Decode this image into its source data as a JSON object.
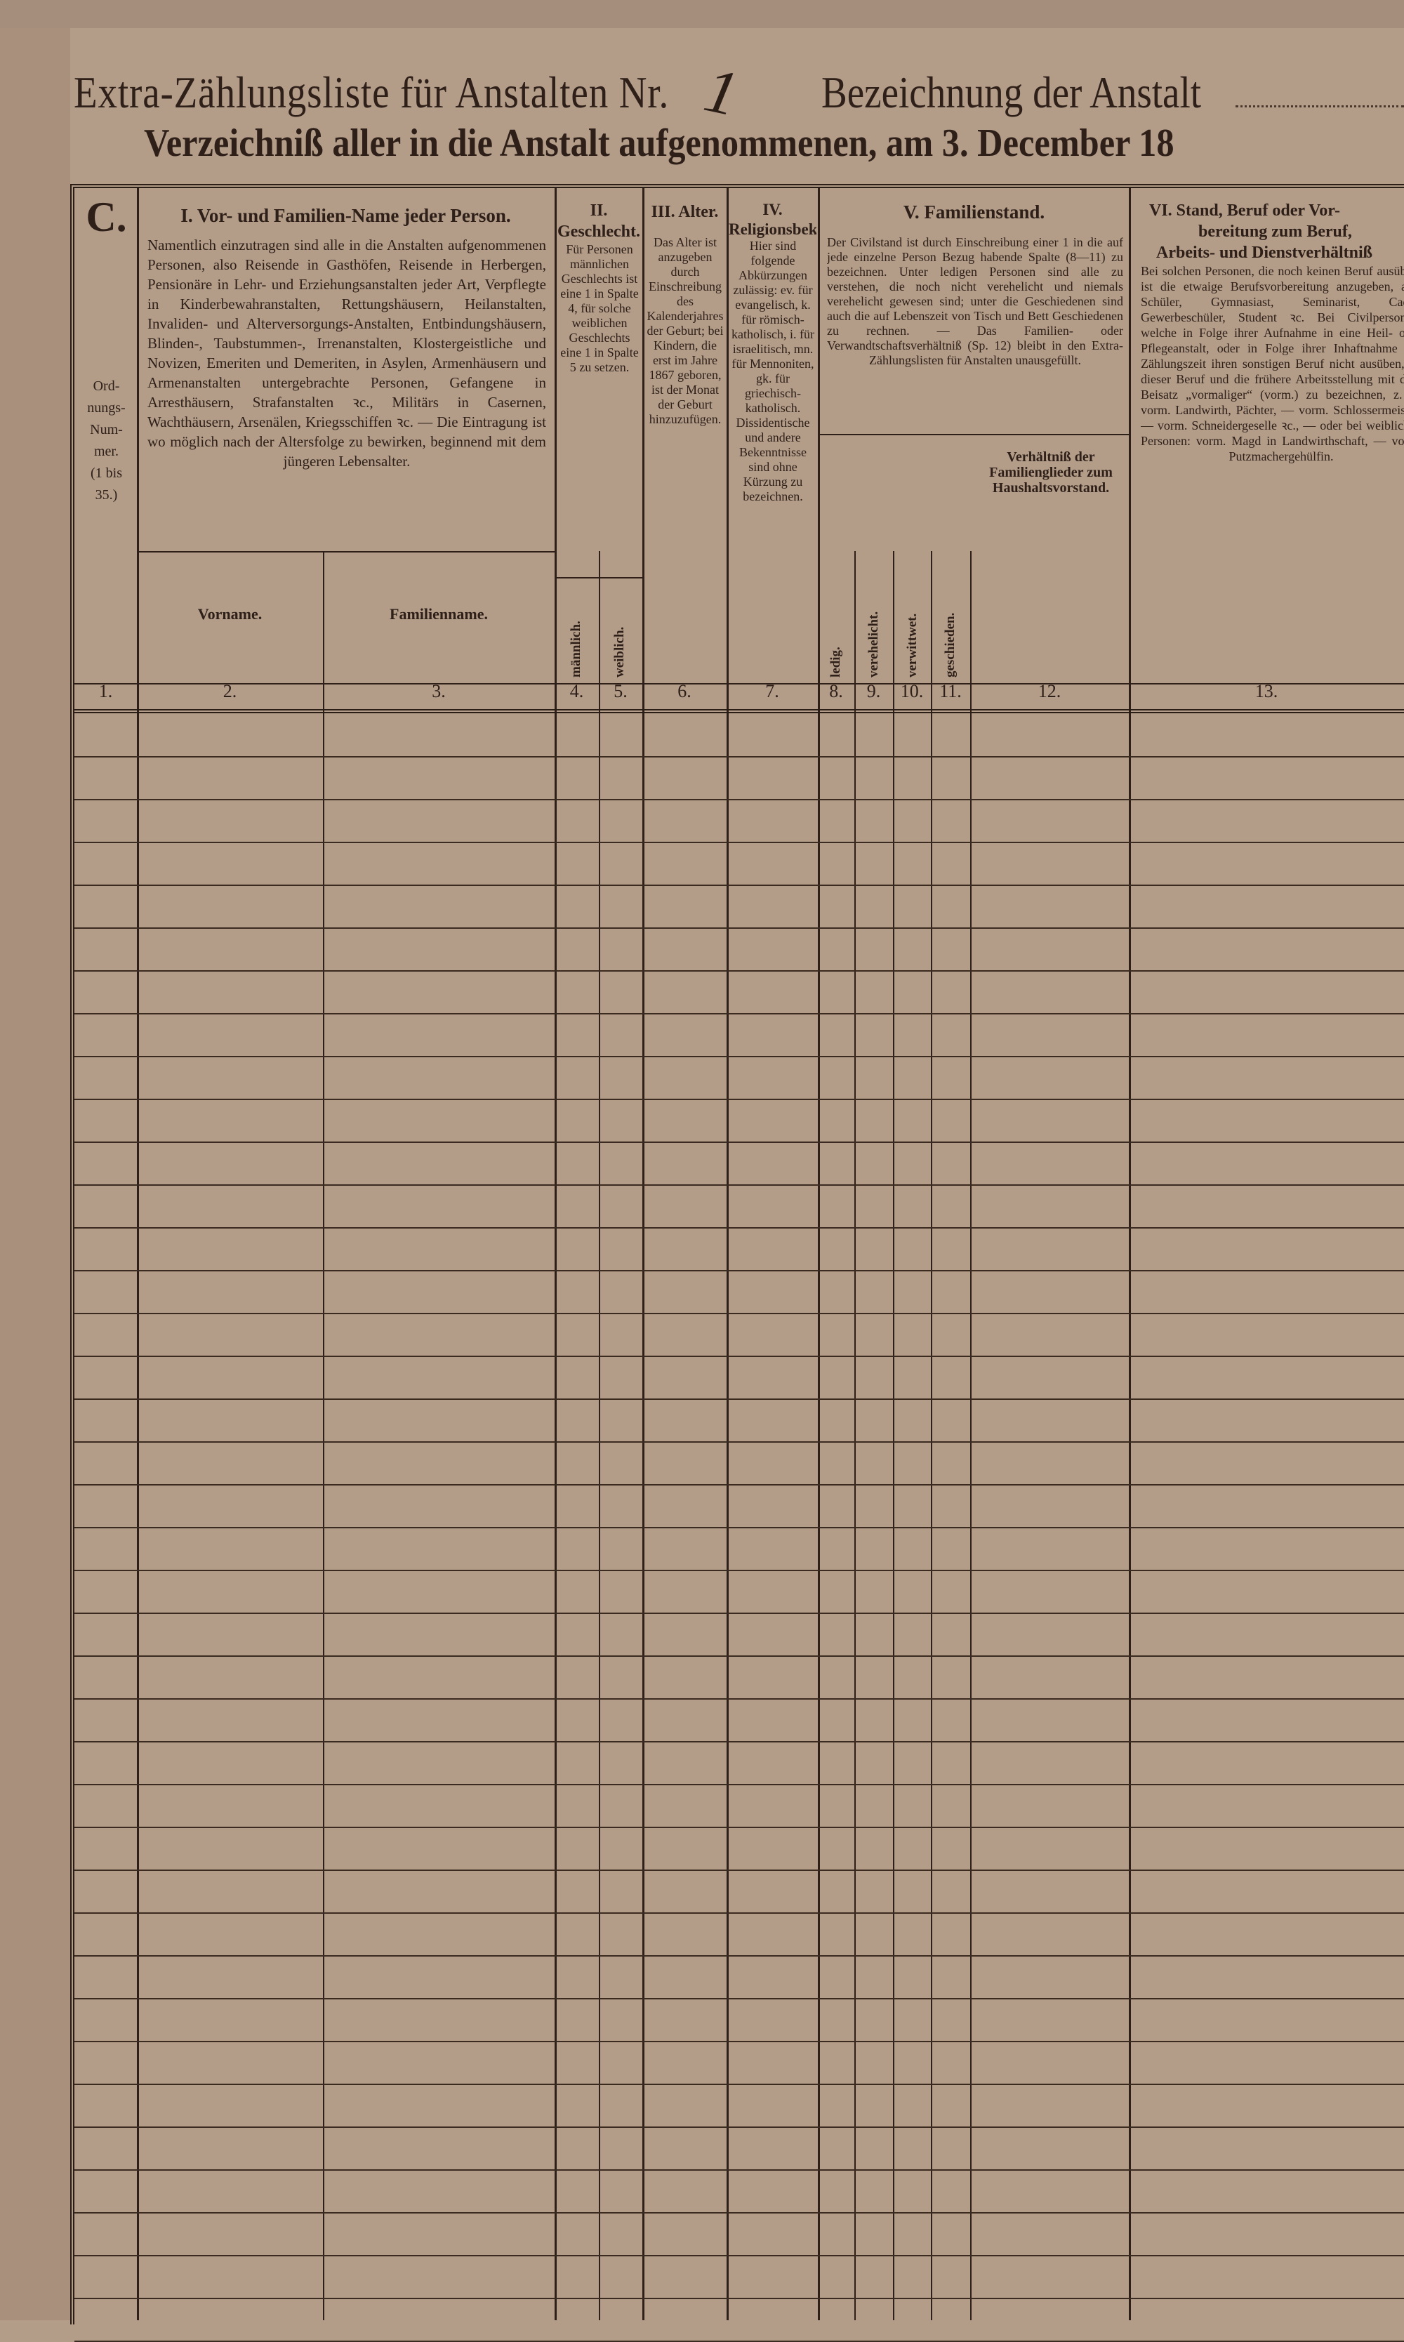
{
  "header": {
    "title_line1": "Extra-Zählungsliste für Anstalten Nr.",
    "institution_number": "1",
    "title_line1_b": "Bezeichnung der Anstalt",
    "title_line2": "Verzeichniß aller in die Anstalt aufgenommenen, am 3. December 18"
  },
  "columns": {
    "c1": {
      "letter": "C.",
      "label_lines": [
        "Ord-",
        "nungs-",
        "Num-",
        "mer.",
        "(1 bis",
        "35.)"
      ],
      "number": "1."
    },
    "c_names": {
      "title": "I. Vor- und Familien-Name jeder Person.",
      "instructions": "Namentlich einzutragen sind alle in die Anstalten aufgenommenen Personen, also Reisende in Gasthöfen, Reisende in Herbergen, Pensionäre in Lehr- und Erziehungsanstalten jeder Art, Verpflegte in Kinderbewahranstalten, Rettungshäusern, Heilanstalten, Invaliden- und Alterversorgungs-Anstalten, Entbindungshäusern, Blinden-, Taubstummen-, Irrenanstalten, Klostergeistliche und Novizen, Emeriten und Demeriten, in Asylen, Armenhäusern und Armenanstalten untergebrachte Personen, Gefangene in Arresthäusern, Strafanstalten ꝛc., Militärs in Casernen, Wachthäusern, Arsenälen, Kriegsschiffen ꝛc. — Die Eintragung ist wo möglich nach der Altersfolge zu bewirken, beginnend mit dem jüngeren Lebensalter.",
      "sub": [
        {
          "label": "Vorname.",
          "number": "2."
        },
        {
          "label": "Familienname.",
          "number": "3."
        }
      ]
    },
    "c_sex": {
      "title": "II. Geschlecht.",
      "instructions": "Für Personen männlichen Geschlechts ist eine 1 in Spalte 4, für solche weiblichen Geschlechts eine 1 in Spalte 5 zu setzen.",
      "sub": [
        {
          "label": "männlich.",
          "number": "4."
        },
        {
          "label": "weiblich.",
          "number": "5."
        }
      ]
    },
    "c_age": {
      "title": "III. Alter.",
      "instructions": "Das Alter ist anzugeben durch Einschreibung des Kalenderjahres der Geburt; bei Kindern, die erst im Jahre 1867 geboren, ist der Monat der Geburt hinzuzufügen.",
      "number": "6."
    },
    "c_religion": {
      "title": "IV. Religionsbekenntniß.",
      "instructions": "Hier sind folgende Abkürzungen zulässig: ev. für evangelisch, k. für römisch-katholisch, i. für israelitisch, mn. für Mennoniten, gk. für griechisch-katholisch. Dissidentische und andere Bekenntnisse sind ohne Kürzung zu bezeichnen.",
      "number": "7."
    },
    "c_family": {
      "title": "V. Familienstand.",
      "instructions": "Der Civilstand ist durch Einschreibung einer 1 in die auf jede einzelne Person Bezug habende Spalte (8—11) zu bezeichnen. Unter ledigen Personen sind alle zu verstehen, die noch nicht verehelicht und niemals verehelicht gewesen sind; unter die Geschiedenen sind auch die auf Lebenszeit von Tisch und Bett Geschiedenen zu rechnen. — Das Familien- oder Verwandtschaftsverhältniß (Sp. 12) bleibt in den Extra-Zählungslisten für Anstalten unausgefüllt.",
      "sub": [
        {
          "label": "ledig.",
          "number": "8."
        },
        {
          "label": "verehelicht.",
          "number": "9."
        },
        {
          "label": "verwittwet.",
          "number": "10."
        },
        {
          "label": "geschieden.",
          "number": "11."
        },
        {
          "label": "Verhältniß der Familienglieder zum Haushaltsvorstand.",
          "number": "12."
        }
      ]
    },
    "c_occupation": {
      "title_lines": [
        "VI. Stand, Beruf oder Vor-",
        "bereitung zum Beruf,",
        "Arbeits- und Dienstverhältniß"
      ],
      "instructions": "Bei solchen Personen, die noch keinen Beruf ausüben, ist die etwaige Berufsvorbereitung anzugeben, also Schüler, Gymnasiast, Seminarist, Cadet, Gewerbeschüler, Student ꝛc. Bei Civilpersonen, welche in Folge ihrer Aufnahme in eine Heil- oder Pflegeanstalt, oder in Folge ihrer Inhaftnahme zur Zählungszeit ihren sonstigen Beruf nicht ausüben, ist dieser Beruf und die frühere Arbeitsstellung mit dem Beisatz „vormaliger“ (vorm.) zu bezeichnen, z. B. vorm. Landwirth, Pächter, — vorm. Schlossermeister, — vorm. Schneidergeselle ꝛc., — oder bei weiblichen Personen: vorm. Magd in Landwirthschaft, — vorm. Putzmachergehülfin.",
      "number": "13."
    }
  },
  "colors": {
    "paper": "#b39c88",
    "ink": "#2e2019"
  }
}
